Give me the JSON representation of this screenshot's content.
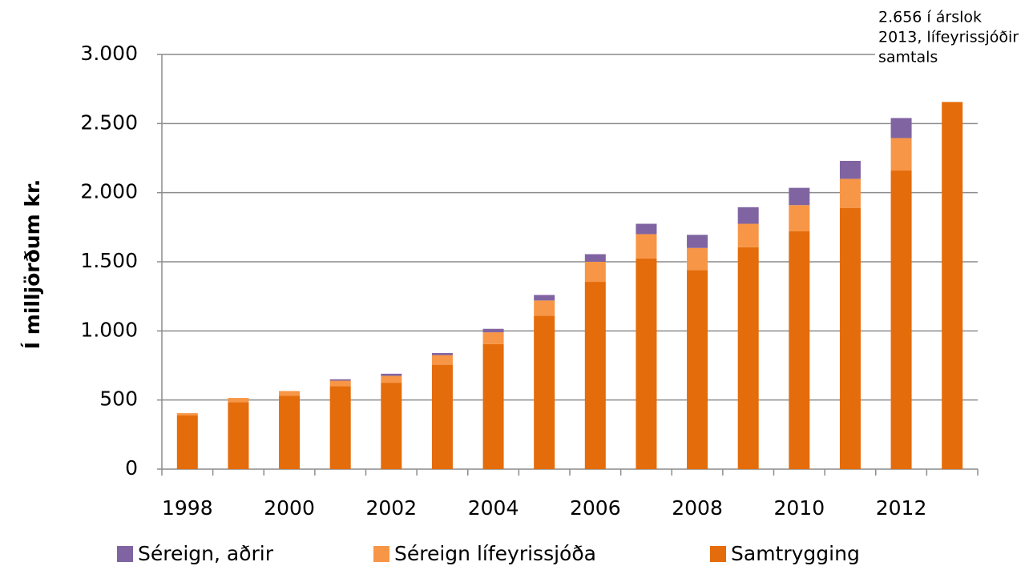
{
  "chart_data": {
    "type": "stacked_bar",
    "y_label": "Í milljörðum kr.",
    "annotation": [
      "2.656 í árslok",
      "2013, lífeyrissjóðir",
      "samtals"
    ],
    "categories": [
      "1998",
      null,
      "2000",
      null,
      "2002",
      null,
      "2004",
      null,
      "2006",
      null,
      "2008",
      null,
      "2010",
      null,
      "2012",
      null
    ],
    "series": [
      {
        "name": "Séreign, aðrir",
        "color": "#8064a2",
        "values": [
          0,
          0,
          0,
          10,
          15,
          15,
          25,
          40,
          55,
          75,
          95,
          120,
          125,
          130,
          145,
          null
        ]
      },
      {
        "name": "Séreign lífeyrissjóða",
        "color": "#f79646",
        "values": [
          15,
          30,
          35,
          40,
          50,
          70,
          85,
          110,
          145,
          175,
          160,
          170,
          190,
          210,
          235,
          null
        ]
      },
      {
        "name": "Samtrygging",
        "color": "#e46c0a",
        "values": [
          390,
          485,
          530,
          600,
          625,
          755,
          905,
          1110,
          1355,
          1525,
          1440,
          1605,
          1720,
          1890,
          2160,
          2656
        ]
      }
    ],
    "ylim": [
      0,
      3000
    ],
    "yticks": [
      0,
      500,
      {
        "value": 1000,
        "label": "1.000"
      },
      {
        "value": 1500,
        "label": "1.500"
      },
      {
        "value": 2000,
        "label": "2.000"
      },
      {
        "value": 2500,
        "label": "2.500"
      },
      {
        "value": 3000,
        "label": "3.000"
      }
    ],
    "grid": true
  }
}
